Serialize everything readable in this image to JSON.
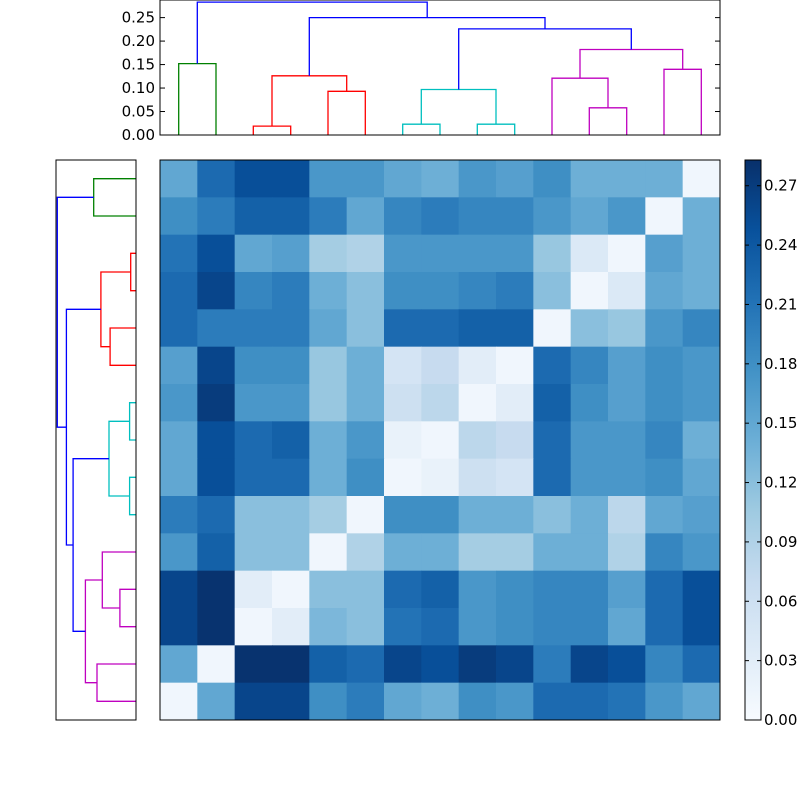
{
  "chart_data": [
    {
      "type": "dendrogram",
      "orientation": "top",
      "yticks": [
        "0.00",
        "0.05",
        "0.10",
        "0.15",
        "0.20",
        "0.25"
      ],
      "ytick_values": [
        0,
        0.05,
        0.1,
        0.15,
        0.2,
        0.25
      ],
      "ylim": [
        0,
        0.2875
      ],
      "leaf_count": 15,
      "links": [
        {
          "x": [
            0.5,
            0.5,
            1.5,
            1.5
          ],
          "y": [
            0,
            0.152,
            0.152,
            0
          ],
          "color": "#008000"
        },
        {
          "x": [
            2.5,
            2.5,
            3.5,
            3.5
          ],
          "y": [
            0,
            0.019,
            0.019,
            0
          ],
          "color": "#ff0000"
        },
        {
          "x": [
            4.5,
            4.5,
            5.5,
            5.5
          ],
          "y": [
            0,
            0.093,
            0.093,
            0
          ],
          "color": "#ff0000"
        },
        {
          "x": [
            3.0,
            3.0,
            5.0,
            5.0
          ],
          "y": [
            0.019,
            0.126,
            0.126,
            0.093
          ],
          "color": "#ff0000"
        },
        {
          "x": [
            6.5,
            6.5,
            7.5,
            7.5
          ],
          "y": [
            0,
            0.023,
            0.023,
            0
          ],
          "color": "#00bfbf"
        },
        {
          "x": [
            8.5,
            8.5,
            9.5,
            9.5
          ],
          "y": [
            0,
            0.023,
            0.023,
            0
          ],
          "color": "#00bfbf"
        },
        {
          "x": [
            7.0,
            7.0,
            9.0,
            9.0
          ],
          "y": [
            0.023,
            0.097,
            0.097,
            0.023
          ],
          "color": "#00bfbf"
        },
        {
          "x": [
            11.5,
            11.5,
            12.5,
            12.5
          ],
          "y": [
            0,
            0.058,
            0.058,
            0
          ],
          "color": "#bf00bf"
        },
        {
          "x": [
            10.5,
            10.5,
            12.0,
            12.0
          ],
          "y": [
            0,
            0.121,
            0.121,
            0.058
          ],
          "color": "#bf00bf"
        },
        {
          "x": [
            13.5,
            13.5,
            14.5,
            14.5
          ],
          "y": [
            0,
            0.14,
            0.14,
            0
          ],
          "color": "#bf00bf"
        },
        {
          "x": [
            11.25,
            11.25,
            14.0,
            14.0
          ],
          "y": [
            0.121,
            0.182,
            0.182,
            0.14
          ],
          "color": "#bf00bf"
        },
        {
          "x": [
            8.0,
            8.0,
            12.625,
            12.625
          ],
          "y": [
            0.097,
            0.226,
            0.226,
            0.182
          ],
          "color": "#0000ff"
        },
        {
          "x": [
            4.0,
            4.0,
            10.3125,
            10.3125
          ],
          "y": [
            0.126,
            0.25,
            0.25,
            0.226
          ],
          "color": "#0000ff"
        },
        {
          "x": [
            1.0,
            1.0,
            7.15625,
            7.15625
          ],
          "y": [
            0.152,
            0.283,
            0.283,
            0.25
          ],
          "color": "#0000ff"
        }
      ]
    },
    {
      "type": "dendrogram",
      "orientation": "left",
      "leaf_count": 15,
      "xlim": [
        0,
        0.2875
      ],
      "links": [
        {
          "x": [
            0,
            0.152,
            0.152,
            0
          ],
          "y": [
            0.5,
            0.5,
            1.5,
            1.5
          ],
          "color": "#008000"
        },
        {
          "x": [
            0,
            0.019,
            0.019,
            0
          ],
          "y": [
            2.5,
            2.5,
            3.5,
            3.5
          ],
          "color": "#ff0000"
        },
        {
          "x": [
            0,
            0.093,
            0.093,
            0
          ],
          "y": [
            4.5,
            4.5,
            5.5,
            5.5
          ],
          "color": "#ff0000"
        },
        {
          "x": [
            0.019,
            0.126,
            0.126,
            0.093
          ],
          "y": [
            3.0,
            3.0,
            5.0,
            5.0
          ],
          "color": "#ff0000"
        },
        {
          "x": [
            0,
            0.023,
            0.023,
            0
          ],
          "y": [
            6.5,
            6.5,
            7.5,
            7.5
          ],
          "color": "#00bfbf"
        },
        {
          "x": [
            0,
            0.023,
            0.023,
            0
          ],
          "y": [
            8.5,
            8.5,
            9.5,
            9.5
          ],
          "color": "#00bfbf"
        },
        {
          "x": [
            0.023,
            0.097,
            0.097,
            0.023
          ],
          "y": [
            7.0,
            7.0,
            9.0,
            9.0
          ],
          "color": "#00bfbf"
        },
        {
          "x": [
            0,
            0.058,
            0.058,
            0
          ],
          "y": [
            11.5,
            11.5,
            12.5,
            12.5
          ],
          "color": "#bf00bf"
        },
        {
          "x": [
            0,
            0.121,
            0.121,
            0.058
          ],
          "y": [
            10.5,
            10.5,
            12.0,
            12.0
          ],
          "color": "#bf00bf"
        },
        {
          "x": [
            0,
            0.14,
            0.14,
            0
          ],
          "y": [
            13.5,
            13.5,
            14.5,
            14.5
          ],
          "color": "#bf00bf"
        },
        {
          "x": [
            0.121,
            0.182,
            0.182,
            0.14
          ],
          "y": [
            11.25,
            11.25,
            14.0,
            14.0
          ],
          "color": "#bf00bf"
        },
        {
          "x": [
            0.097,
            0.226,
            0.226,
            0.182
          ],
          "y": [
            8.0,
            8.0,
            12.625,
            12.625
          ],
          "color": "#0000ff"
        },
        {
          "x": [
            0.126,
            0.25,
            0.25,
            0.226
          ],
          "y": [
            4.0,
            4.0,
            10.3125,
            10.3125
          ],
          "color": "#0000ff"
        },
        {
          "x": [
            0.152,
            0.283,
            0.283,
            0.25
          ],
          "y": [
            1.0,
            1.0,
            7.15625,
            7.15625
          ],
          "color": "#0000ff"
        }
      ]
    },
    {
      "type": "heatmap",
      "colormap": "Blues",
      "vmin": 0,
      "vmax": 0.283,
      "colorbar_ticks": [
        "0.00",
        "0.03",
        "0.06",
        "0.09",
        "0.12",
        "0.15",
        "0.18",
        "0.21",
        "0.24",
        "0.27"
      ],
      "colorbar_tick_values": [
        0,
        0.03,
        0.06,
        0.09,
        0.12,
        0.15,
        0.18,
        0.21,
        0.24,
        0.27
      ],
      "values": [
        [
          0.15,
          0.22,
          0.25,
          0.25,
          0.17,
          0.17,
          0.15,
          0.14,
          0.17,
          0.16,
          0.18,
          0.14,
          0.14,
          0.14,
          0.01
        ],
        [
          0.18,
          0.2,
          0.23,
          0.23,
          0.2,
          0.15,
          0.19,
          0.2,
          0.19,
          0.19,
          0.17,
          0.15,
          0.17,
          0.01,
          0.14
        ],
        [
          0.21,
          0.25,
          0.15,
          0.16,
          0.1,
          0.09,
          0.17,
          0.17,
          0.17,
          0.17,
          0.11,
          0.04,
          0.01,
          0.16,
          0.14
        ],
        [
          0.22,
          0.26,
          0.19,
          0.2,
          0.14,
          0.12,
          0.18,
          0.18,
          0.19,
          0.2,
          0.12,
          0.01,
          0.04,
          0.15,
          0.14
        ],
        [
          0.22,
          0.2,
          0.2,
          0.2,
          0.15,
          0.12,
          0.22,
          0.22,
          0.23,
          0.23,
          0.01,
          0.12,
          0.11,
          0.17,
          0.19
        ],
        [
          0.16,
          0.26,
          0.18,
          0.18,
          0.11,
          0.14,
          0.05,
          0.07,
          0.03,
          0.01,
          0.22,
          0.19,
          0.16,
          0.18,
          0.17
        ],
        [
          0.17,
          0.27,
          0.17,
          0.17,
          0.11,
          0.14,
          0.06,
          0.08,
          0.01,
          0.03,
          0.23,
          0.18,
          0.16,
          0.18,
          0.17
        ],
        [
          0.15,
          0.25,
          0.22,
          0.23,
          0.14,
          0.17,
          0.02,
          0.01,
          0.08,
          0.07,
          0.22,
          0.17,
          0.17,
          0.19,
          0.14
        ],
        [
          0.15,
          0.25,
          0.22,
          0.22,
          0.14,
          0.18,
          0.01,
          0.02,
          0.06,
          0.05,
          0.22,
          0.17,
          0.17,
          0.18,
          0.15
        ],
        [
          0.2,
          0.22,
          0.12,
          0.12,
          0.1,
          0.01,
          0.18,
          0.18,
          0.14,
          0.14,
          0.12,
          0.14,
          0.08,
          0.15,
          0.16
        ],
        [
          0.17,
          0.23,
          0.12,
          0.12,
          0.01,
          0.09,
          0.14,
          0.14,
          0.1,
          0.1,
          0.14,
          0.14,
          0.09,
          0.19,
          0.17
        ],
        [
          0.26,
          0.28,
          0.03,
          0.01,
          0.12,
          0.12,
          0.22,
          0.23,
          0.17,
          0.18,
          0.19,
          0.19,
          0.16,
          0.22,
          0.25
        ],
        [
          0.26,
          0.28,
          0.01,
          0.03,
          0.13,
          0.12,
          0.21,
          0.22,
          0.17,
          0.18,
          0.19,
          0.19,
          0.15,
          0.22,
          0.25
        ],
        [
          0.15,
          0.01,
          0.28,
          0.28,
          0.23,
          0.22,
          0.26,
          0.25,
          0.27,
          0.26,
          0.2,
          0.26,
          0.25,
          0.19,
          0.22
        ],
        [
          0.01,
          0.15,
          0.26,
          0.26,
          0.18,
          0.2,
          0.15,
          0.14,
          0.18,
          0.17,
          0.22,
          0.22,
          0.21,
          0.17,
          0.15
        ]
      ]
    }
  ]
}
